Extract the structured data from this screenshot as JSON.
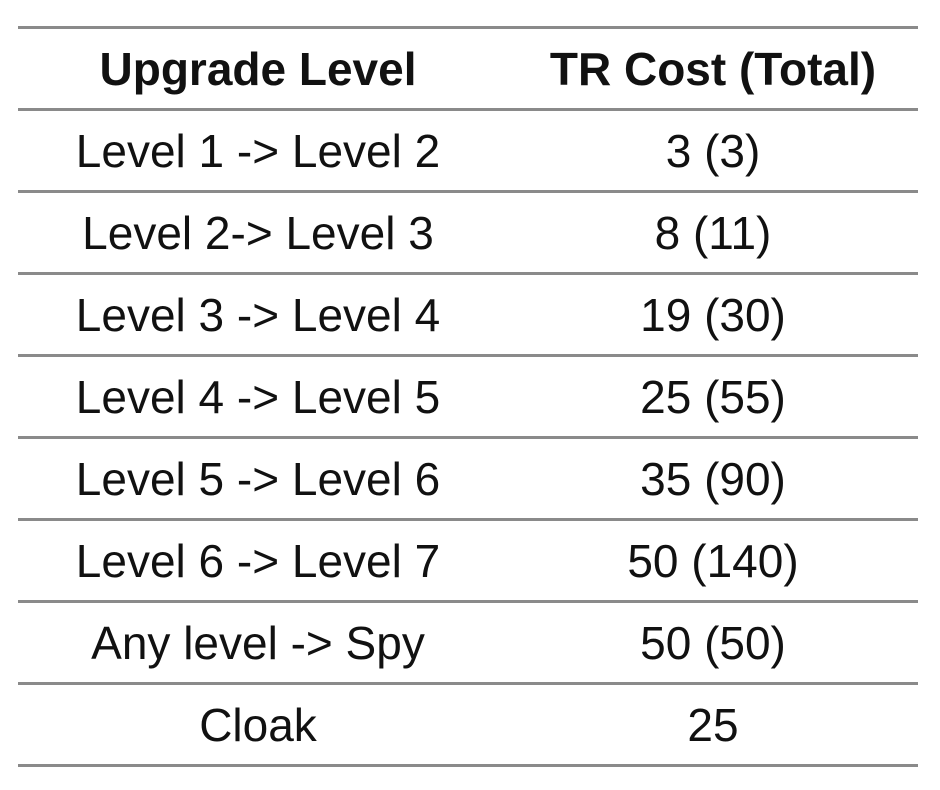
{
  "table": {
    "headers": [
      "Upgrade Level",
      "TR Cost (Total)"
    ],
    "rows": [
      [
        "Level 1 -> Level 2",
        "3 (3)"
      ],
      [
        "Level 2-> Level 3",
        "8 (11)"
      ],
      [
        "Level 3 -> Level 4",
        "19 (30)"
      ],
      [
        "Level 4 -> Level 5",
        "25 (55)"
      ],
      [
        "Level 5 -> Level 6",
        "35 (90)"
      ],
      [
        "Level 6 -> Level 7",
        "50 (140)"
      ],
      [
        "Any level -> Spy",
        "50 (50)"
      ],
      [
        "Cloak",
        "25"
      ]
    ],
    "border_color": "#8a8a8a",
    "text_color": "#111111"
  }
}
